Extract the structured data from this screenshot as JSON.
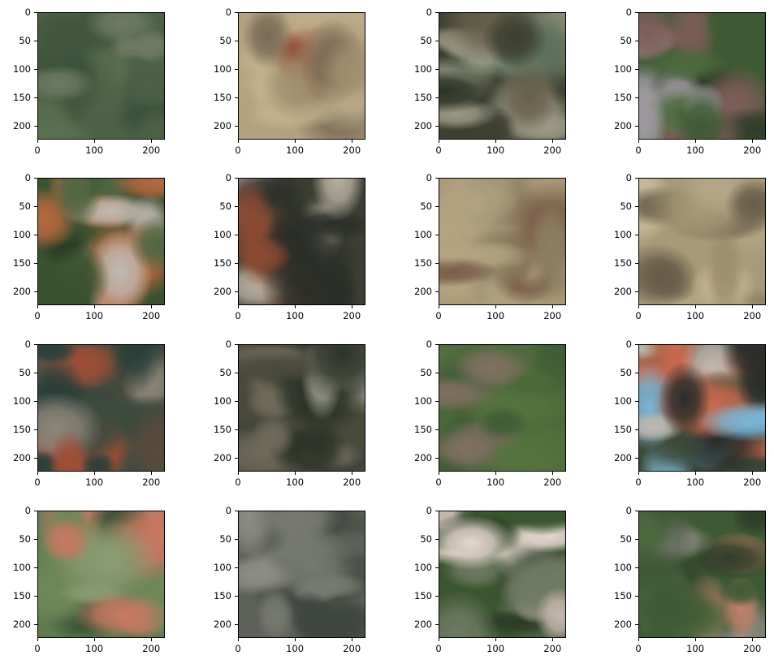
{
  "figure": {
    "rows": 4,
    "cols": 4,
    "y_ticks": [
      "0",
      "50",
      "100",
      "150",
      "200"
    ],
    "x_ticks": [
      "0",
      "100",
      "200"
    ],
    "y_tick_values": [
      0,
      50,
      100,
      150,
      200
    ],
    "x_tick_values": [
      0,
      100,
      200
    ],
    "axis_range": [
      0,
      224
    ]
  },
  "panels": [
    {
      "name": "panel-1-1",
      "palette": [
        "#4d6146",
        "#5a6e50",
        "#42553d",
        "#6e7a62",
        "#39503a"
      ]
    },
    {
      "name": "panel-1-2",
      "palette": [
        "#b3a27f",
        "#a08f6e",
        "#c2b390",
        "#7a6a55",
        "#8e3e2c"
      ]
    },
    {
      "name": "panel-1-3",
      "palette": [
        "#3d3f30",
        "#67604c",
        "#9c9a86",
        "#2a3325",
        "#5b6f58"
      ]
    },
    {
      "name": "panel-1-4",
      "palette": [
        "#3e5a35",
        "#2e3d28",
        "#a09aa0",
        "#7d5d57",
        "#4c6a3e"
      ]
    },
    {
      "name": "panel-2-1",
      "palette": [
        "#3b5230",
        "#2a3b24",
        "#c0b8b0",
        "#b8683e",
        "#4f6642"
      ]
    },
    {
      "name": "panel-2-2",
      "palette": [
        "#3b3f33",
        "#b8aea0",
        "#62684f",
        "#8a4a32",
        "#2a2e28"
      ]
    },
    {
      "name": "panel-2-3",
      "palette": [
        "#a89876",
        "#b4a482",
        "#8d7f62",
        "#5a5f4c",
        "#7a5d48"
      ]
    },
    {
      "name": "panel-2-4",
      "palette": [
        "#a89a78",
        "#b5a686",
        "#9c8d6c",
        "#665c48",
        "#c8b89a"
      ]
    },
    {
      "name": "panel-3-1",
      "palette": [
        "#3e4a3e",
        "#2a3f38",
        "#8d867a",
        "#5a4a3a",
        "#a04e36"
      ]
    },
    {
      "name": "panel-3-2",
      "palette": [
        "#4a4a3c",
        "#6f6a5a",
        "#3a4038",
        "#9e9c90",
        "#2c3328"
      ]
    },
    {
      "name": "panel-3-3",
      "palette": [
        "#4a6a3a",
        "#3f5c35",
        "#6f6a55",
        "#55733f",
        "#807060"
      ]
    },
    {
      "name": "panel-3-4",
      "palette": [
        "#3d4a38",
        "#c0b8b0",
        "#c96a4e",
        "#7ab6d4",
        "#2a2d2a"
      ]
    },
    {
      "name": "panel-4-1",
      "palette": [
        "#5e7a4e",
        "#6e8758",
        "#c87862",
        "#2e4a30",
        "#8a9b72"
      ]
    },
    {
      "name": "panel-4-2",
      "palette": [
        "#5e615a",
        "#4c5248",
        "#777a70",
        "#3e4540",
        "#8c8d84"
      ]
    },
    {
      "name": "panel-4-3",
      "palette": [
        "#3b5530",
        "#e6d8d0",
        "#c6b7ae",
        "#2a3a24",
        "#6f7a62"
      ]
    },
    {
      "name": "panel-4-4",
      "palette": [
        "#3e5a35",
        "#4c6a3e",
        "#2e3d28",
        "#c0806a",
        "#8a8a80"
      ]
    }
  ]
}
